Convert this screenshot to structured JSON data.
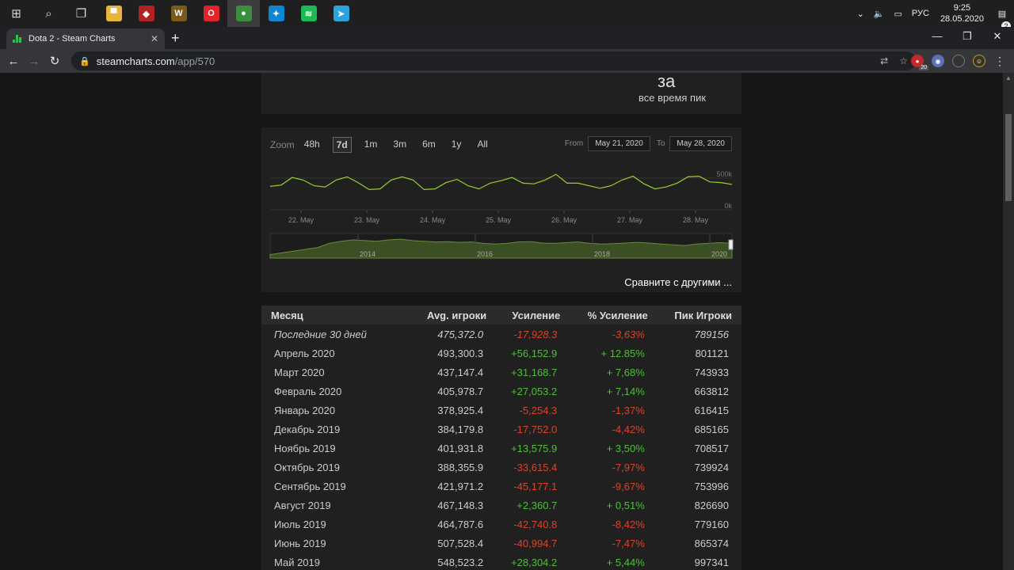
{
  "taskbar": {
    "apps": [
      {
        "name": "file-explorer-icon",
        "color": "#e8b53c",
        "glyph": "▀"
      },
      {
        "name": "dota2-icon",
        "color": "#b22222",
        "glyph": "◆"
      },
      {
        "name": "wow-icon",
        "color": "#7a5a1a",
        "glyph": "W"
      },
      {
        "name": "opera-icon",
        "color": "#e0242c",
        "glyph": "O"
      },
      {
        "name": "chrome-icon",
        "color": "#3c8f3c",
        "glyph": "●"
      },
      {
        "name": "battlenet-icon",
        "color": "#0e86d4",
        "glyph": "✦"
      },
      {
        "name": "spotify-icon",
        "color": "#1db954",
        "glyph": "≋"
      },
      {
        "name": "telegram-icon",
        "color": "#2aa3de",
        "glyph": "➤"
      }
    ],
    "lang": "РУС",
    "time": "9:25",
    "date": "28.05.2020",
    "notifications": "2"
  },
  "browser": {
    "tab_title": "Dota 2 - Steam Charts",
    "url_host": "steamcharts.com",
    "url_path": "/app/570",
    "ext_count": "20"
  },
  "page": {
    "top_big": "за",
    "top_small": "все время пик",
    "zoom_label": "Zoom",
    "zoom_options": [
      "48h",
      "7d",
      "1m",
      "3m",
      "6m",
      "1y",
      "All"
    ],
    "zoom_selected": "7d",
    "from_label": "From",
    "from_value": "May 21, 2020",
    "to_label": "To",
    "to_value": "May 28, 2020",
    "compare_link": "Сравните с другими ..."
  },
  "chart_data": {
    "type": "line",
    "x_labels": [
      "22. May",
      "23. May",
      "24. May",
      "25. May",
      "26. May",
      "27. May",
      "28. May"
    ],
    "y_labels": [
      "500k",
      "0k"
    ],
    "ylim": [
      0,
      800000
    ],
    "series": [
      {
        "values": [
          370000,
          390000,
          510000,
          470000,
          380000,
          360000,
          470000,
          520000,
          430000,
          320000,
          330000,
          470000,
          520000,
          470000,
          320000,
          330000,
          430000,
          480000,
          380000,
          330000,
          420000,
          460000,
          510000,
          420000,
          410000,
          470000,
          560000,
          420000,
          420000,
          380000,
          340000,
          380000,
          470000,
          530000,
          410000,
          330000,
          360000,
          420000,
          520000,
          530000,
          440000,
          430000,
          400000
        ]
      }
    ],
    "navigator_labels": [
      "2014",
      "2016",
      "2018",
      "2020"
    ],
    "navigator_values": [
      100000,
      150000,
      200000,
      250000,
      300000,
      420000,
      480000,
      520000,
      500000,
      480000,
      520000,
      540000,
      500000,
      480000,
      460000,
      470000,
      450000,
      460000,
      420000,
      400000,
      420000,
      460000,
      470000,
      430000,
      420000,
      440000,
      460000,
      420000,
      400000,
      410000,
      430000,
      450000,
      430000,
      400000,
      380000,
      360000,
      400000,
      420000,
      440000,
      420000
    ]
  },
  "table": {
    "headers": {
      "month": "Месяц",
      "avg": "Avg. игроки",
      "gain": "Усиление",
      "pct": "% Усиление",
      "peak": "Пик Игроки"
    },
    "rows": [
      {
        "month": "Последние 30 дней",
        "avg": "475,372.0",
        "gain": "-17,928.3",
        "pct": "-3,63%",
        "peak": "789156"
      },
      {
        "month": "Апрель 2020",
        "avg": "493,300.3",
        "gain": "+56,152.9",
        "pct": "+ 12.85%",
        "peak": "801121"
      },
      {
        "month": "Март 2020",
        "avg": "437,147.4",
        "gain": "+31,168.7",
        "pct": "+ 7,68%",
        "peak": "743933"
      },
      {
        "month": "Февраль 2020",
        "avg": "405,978.7",
        "gain": "+27,053.2",
        "pct": "+ 7,14%",
        "peak": "663812"
      },
      {
        "month": "Январь 2020",
        "avg": "378,925.4",
        "gain": "-5,254.3",
        "pct": "-1,37%",
        "peak": "616415"
      },
      {
        "month": "Декабрь 2019",
        "avg": "384,179.8",
        "gain": "-17,752.0",
        "pct": "-4,42%",
        "peak": "685165"
      },
      {
        "month": "Ноябрь 2019",
        "avg": "401,931.8",
        "gain": "+13,575.9",
        "pct": "+ 3,50%",
        "peak": "708517"
      },
      {
        "month": "Октябрь 2019",
        "avg": "388,355.9",
        "gain": "-33,615.4",
        "pct": "-7,97%",
        "peak": "739924"
      },
      {
        "month": "Сентябрь 2019",
        "avg": "421,971.2",
        "gain": "-45,177.1",
        "pct": "-9,67%",
        "peak": "753996"
      },
      {
        "month": "Август 2019",
        "avg": "467,148.3",
        "gain": "+2,360.7",
        "pct": "+ 0,51%",
        "peak": "826690"
      },
      {
        "month": "Июль 2019",
        "avg": "464,787.6",
        "gain": "-42,740.8",
        "pct": "-8,42%",
        "peak": "779160"
      },
      {
        "month": "Июнь 2019",
        "avg": "507,528.4",
        "gain": "-40,994.7",
        "pct": "-7,47%",
        "peak": "865374"
      },
      {
        "month": "Май 2019",
        "avg": "548,523.2",
        "gain": "+28,304.2",
        "pct": "+ 5,44%",
        "peak": "997341"
      }
    ]
  }
}
